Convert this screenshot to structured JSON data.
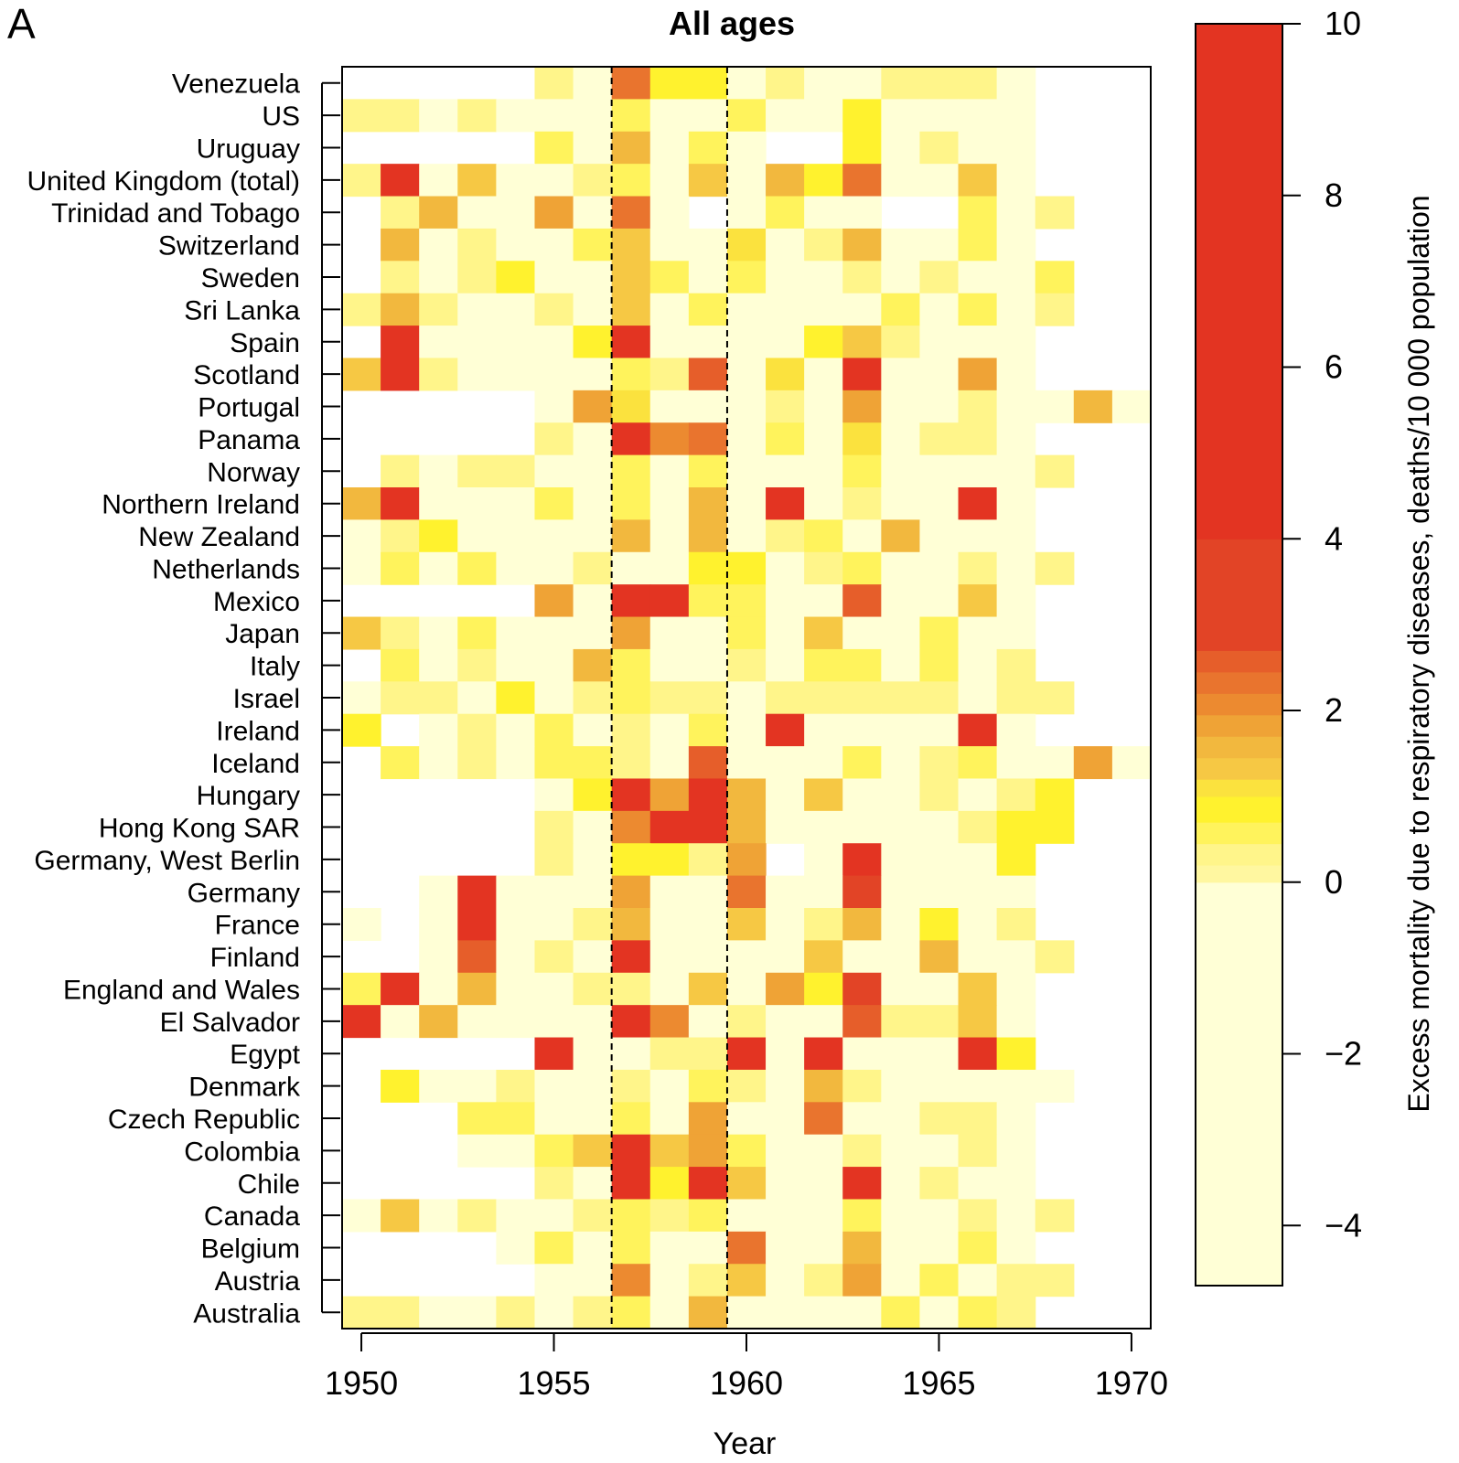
{
  "panel_label": "A",
  "chart_data": {
    "type": "heatmap",
    "title": "All ages",
    "xlabel": "Year",
    "colorbar_label": "Excess mortality due to respiratory diseases, deaths/10 000 population",
    "x_ticks": [
      1950,
      1955,
      1960,
      1965,
      1970
    ],
    "x_range": [
      1949.5,
      1970.5
    ],
    "colorbar_ticks": [
      10,
      8,
      6,
      4,
      2,
      0,
      -2,
      -4
    ],
    "colorbar_range": [
      -4.7,
      10
    ],
    "colorbar_levels": [
      {
        "from": -4.7,
        "to": 0,
        "color": "#FFFFD6"
      },
      {
        "from": 0,
        "to": 0.2,
        "color": "#FFF7A0"
      },
      {
        "from": 0.2,
        "to": 0.45,
        "color": "#FFF58A"
      },
      {
        "from": 0.45,
        "to": 0.7,
        "color": "#FFF35C"
      },
      {
        "from": 0.7,
        "to": 1.0,
        "color": "#FFF22E"
      },
      {
        "from": 1.0,
        "to": 1.2,
        "color": "#FBE23E"
      },
      {
        "from": 1.2,
        "to": 1.45,
        "color": "#F6C844"
      },
      {
        "from": 1.45,
        "to": 1.7,
        "color": "#F2B83E"
      },
      {
        "from": 1.7,
        "to": 1.95,
        "color": "#EFA336"
      },
      {
        "from": 1.95,
        "to": 2.2,
        "color": "#EC8A30"
      },
      {
        "from": 2.2,
        "to": 2.45,
        "color": "#E9742E"
      },
      {
        "from": 2.45,
        "to": 2.7,
        "color": "#E65E2A"
      },
      {
        "from": 2.7,
        "to": 4.0,
        "color": "#E24426"
      },
      {
        "from": 4.0,
        "to": 10,
        "color": "#E33422"
      }
    ],
    "highlight_years": [
      1957,
      1959
    ],
    "countries": [
      "Venezuela",
      "US",
      "Uruguay",
      "United Kingdom (total)",
      "Trinidad and Tobago",
      "Switzerland",
      "Sweden",
      "Sri Lanka",
      "Spain",
      "Scotland",
      "Portugal",
      "Panama",
      "Norway",
      "Northern Ireland",
      "New Zealand",
      "Netherlands",
      "Mexico",
      "Japan",
      "Italy",
      "Israel",
      "Ireland",
      "Iceland",
      "Hungary",
      "Hong Kong SAR",
      "Germany, West Berlin",
      "Germany",
      "France",
      "Finland",
      "England and Wales",
      "El Salvador",
      "Egypt",
      "Denmark",
      "Czech Republic",
      "Colombia",
      "Chile",
      "Canada",
      "Belgium",
      "Austria",
      "Australia"
    ],
    "years": [
      1950,
      1951,
      1952,
      1953,
      1954,
      1955,
      1956,
      1957,
      1958,
      1959,
      1960,
      1961,
      1962,
      1963,
      1964,
      1965,
      1966,
      1967,
      1968,
      1969,
      1970
    ],
    "values": [
      [
        null,
        null,
        null,
        null,
        null,
        0.2,
        -1,
        2.3,
        0.8,
        0.8,
        -1,
        0.2,
        -1,
        -1,
        0.2,
        0.2,
        0.2,
        -1,
        null,
        null,
        null
      ],
      [
        0.2,
        0.2,
        -1,
        0.4,
        -1,
        -1,
        -1,
        0.6,
        -1,
        -1,
        0.6,
        -1,
        -1,
        0.8,
        -1,
        -1,
        -1,
        -1,
        null,
        null,
        null
      ],
      [
        null,
        null,
        null,
        null,
        null,
        0.6,
        -1,
        1.5,
        -1,
        0.6,
        -1,
        null,
        null,
        0.7,
        -1,
        0.2,
        -1,
        -1,
        null,
        null,
        null
      ],
      [
        0.2,
        5.0,
        -1,
        1.3,
        -1,
        -1,
        0.2,
        0.5,
        -1,
        1.2,
        -1,
        1.6,
        0.8,
        2.4,
        -1,
        -1,
        1.2,
        -1,
        null,
        null,
        null
      ],
      [
        null,
        0.2,
        1.6,
        -1,
        -1,
        1.8,
        -1,
        2.3,
        -1,
        null,
        -1,
        0.6,
        -1,
        -1,
        null,
        null,
        0.6,
        -1,
        0.2,
        null,
        null
      ],
      [
        null,
        1.5,
        -1,
        0.4,
        -1,
        -1,
        0.5,
        1.2,
        -1,
        -1,
        1.1,
        -1,
        0.2,
        1.5,
        -1,
        -1,
        0.5,
        -1,
        null,
        null,
        null
      ],
      [
        null,
        0.2,
        -1,
        0.3,
        0.7,
        -1,
        -1,
        1.2,
        0.5,
        -1,
        0.5,
        -1,
        -1,
        0.3,
        -1,
        0.2,
        -1,
        -1,
        0.6,
        null,
        null
      ],
      [
        0.2,
        1.5,
        0.2,
        -1,
        -1,
        0.2,
        -1,
        1.2,
        -1,
        0.5,
        -1,
        -1,
        -1,
        -1,
        0.6,
        -1,
        0.6,
        -1,
        0.2,
        null,
        null
      ],
      [
        null,
        5.0,
        -1,
        -1,
        -1,
        -1,
        0.7,
        5.0,
        -1,
        -1,
        -1,
        -1,
        0.7,
        1.2,
        0.2,
        -1,
        -1,
        -1,
        null,
        null,
        null
      ],
      [
        1.2,
        5.0,
        0.3,
        -1,
        -1,
        -1,
        -1,
        0.6,
        0.2,
        2.5,
        -1,
        1.0,
        -1,
        5.0,
        -1,
        -1,
        1.7,
        -1,
        null,
        null,
        null
      ],
      [
        null,
        null,
        null,
        null,
        null,
        -1,
        1.8,
        1.0,
        -1,
        -1,
        -1,
        0.2,
        -1,
        1.7,
        -1,
        -1,
        0.2,
        -1,
        -1,
        1.5,
        -1
      ],
      [
        null,
        null,
        null,
        null,
        null,
        0.2,
        -1,
        5.0,
        2.0,
        2.4,
        -1,
        0.6,
        -1,
        1.0,
        -1,
        0.2,
        0.2,
        -1,
        null,
        null,
        null
      ],
      [
        null,
        0.2,
        -1,
        0.2,
        0.2,
        -1,
        -1,
        0.5,
        -1,
        0.6,
        -1,
        -1,
        -1,
        0.5,
        -1,
        -1,
        -1,
        -1,
        0.2,
        null,
        null
      ],
      [
        1.6,
        5.0,
        -1,
        -1,
        -1,
        0.6,
        -1,
        0.5,
        -1,
        1.5,
        -1,
        5.0,
        -1,
        0.2,
        -1,
        -1,
        5.0,
        -1,
        null,
        null,
        null
      ],
      [
        -1,
        0.2,
        0.7,
        -1,
        -1,
        -1,
        -1,
        1.5,
        -1,
        1.5,
        -1,
        0.2,
        0.6,
        -1,
        1.6,
        -1,
        -1,
        -1,
        null,
        null,
        null
      ],
      [
        -1,
        0.6,
        -1,
        0.6,
        -1,
        -1,
        0.2,
        -1,
        -1,
        0.7,
        0.7,
        -1,
        0.2,
        0.6,
        -1,
        -1,
        0.2,
        -1,
        0.2,
        null,
        null
      ],
      [
        null,
        null,
        null,
        null,
        null,
        1.8,
        -1,
        5.0,
        5.0,
        0.6,
        0.6,
        -1,
        -1,
        2.6,
        -1,
        -1,
        1.2,
        -1,
        null,
        null,
        null
      ],
      [
        1.2,
        0.2,
        -1,
        0.6,
        -1,
        -1,
        -1,
        1.8,
        -1,
        -1,
        0.5,
        -1,
        1.2,
        -1,
        -1,
        0.6,
        -1,
        -1,
        null,
        null,
        null
      ],
      [
        null,
        0.6,
        -1,
        0.2,
        -1,
        -1,
        1.6,
        0.6,
        -1,
        -1,
        0.2,
        -1,
        0.6,
        0.6,
        -1,
        0.6,
        -1,
        0.2,
        null,
        null,
        null
      ],
      [
        -1,
        0.2,
        0.2,
        -1,
        0.7,
        -1,
        0.2,
        0.6,
        0.2,
        0.2,
        -1,
        0.2,
        0.2,
        0.2,
        0.2,
        0.2,
        -1,
        0.2,
        0.2,
        null,
        null
      ],
      [
        0.7,
        null,
        -1,
        0.2,
        -1,
        0.6,
        -1,
        0.2,
        -1,
        0.6,
        -1,
        5.0,
        -1,
        -1,
        -1,
        -1,
        5.0,
        -1,
        null,
        null,
        null
      ],
      [
        null,
        0.6,
        -1,
        0.2,
        -1,
        0.6,
        0.6,
        0.2,
        -1,
        2.6,
        -1,
        -1,
        -1,
        0.6,
        -1,
        0.2,
        0.6,
        -1,
        -1,
        1.8,
        -1
      ],
      [
        null,
        null,
        null,
        null,
        null,
        -1,
        0.7,
        5.0,
        1.7,
        5.0,
        1.5,
        -1,
        1.2,
        -1,
        -1,
        0.2,
        -1,
        0.2,
        0.8,
        null,
        null
      ],
      [
        null,
        null,
        null,
        null,
        null,
        0.2,
        -1,
        2.0,
        5.0,
        5.0,
        1.5,
        -1,
        -1,
        -1,
        -1,
        -1,
        0.2,
        0.8,
        0.8,
        null,
        null
      ],
      [
        null,
        null,
        null,
        null,
        null,
        0.2,
        -1,
        0.8,
        0.8,
        0.2,
        1.9,
        null,
        -1,
        5.0,
        -1,
        -1,
        -1,
        0.8,
        null,
        null,
        null
      ],
      [
        null,
        null,
        -1,
        5.0,
        -1,
        -1,
        -1,
        1.8,
        -1,
        -1,
        2.2,
        -1,
        -1,
        3.0,
        -1,
        -1,
        -1,
        -1,
        null,
        null,
        null
      ],
      [
        -1,
        null,
        -1,
        5.0,
        -1,
        -1,
        0.2,
        1.5,
        -1,
        -1,
        1.2,
        -1,
        0.2,
        1.5,
        -1,
        0.7,
        -1,
        0.2,
        null,
        null,
        null
      ],
      [
        null,
        null,
        -1,
        2.5,
        -1,
        0.2,
        -1,
        5.0,
        -1,
        -1,
        -1,
        -1,
        1.2,
        -1,
        -1,
        1.5,
        -1,
        -1,
        0.2,
        null,
        null
      ],
      [
        0.6,
        5.0,
        -1,
        1.6,
        -1,
        -1,
        0.2,
        0.2,
        -1,
        1.2,
        -1,
        1.7,
        0.8,
        3.0,
        -1,
        -1,
        1.2,
        -1,
        null,
        null,
        null
      ],
      [
        5.0,
        -1,
        1.5,
        -1,
        -1,
        -1,
        -1,
        5.0,
        2.0,
        -1,
        0.2,
        -1,
        -1,
        2.5,
        0.2,
        0.2,
        1.2,
        -1,
        null,
        null,
        null
      ],
      [
        null,
        null,
        null,
        null,
        null,
        5.0,
        -1,
        -1,
        0.2,
        0.2,
        5.0,
        -1,
        5.0,
        -1,
        -1,
        -1,
        5.0,
        0.8,
        null,
        null,
        null
      ],
      [
        null,
        0.7,
        -1,
        -1,
        0.2,
        -1,
        -1,
        0.2,
        -1,
        0.6,
        0.2,
        -1,
        1.6,
        0.2,
        -1,
        -1,
        -1,
        -1,
        -1,
        null,
        null
      ],
      [
        null,
        null,
        null,
        0.6,
        0.6,
        -1,
        -1,
        0.6,
        -1,
        1.7,
        -1,
        -1,
        2.4,
        -1,
        -1,
        0.2,
        0.2,
        -1,
        null,
        null,
        null
      ],
      [
        null,
        null,
        null,
        -1,
        -1,
        0.5,
        1.2,
        5.0,
        1.2,
        1.7,
        0.6,
        -1,
        -1,
        0.2,
        -1,
        -1,
        0.2,
        -1,
        null,
        null,
        null
      ],
      [
        null,
        null,
        null,
        null,
        null,
        0.2,
        -1,
        5.0,
        0.7,
        5.0,
        1.2,
        -1,
        -1,
        5.0,
        -1,
        0.2,
        -1,
        -1,
        null,
        null,
        null
      ],
      [
        -1,
        1.2,
        -1,
        0.2,
        -1,
        -1,
        0.2,
        0.6,
        0.2,
        0.6,
        -1,
        -1,
        -1,
        0.6,
        -1,
        -1,
        0.2,
        -1,
        0.2,
        null,
        null
      ],
      [
        null,
        null,
        null,
        null,
        -1,
        0.6,
        -1,
        0.6,
        -1,
        -1,
        2.4,
        -1,
        -1,
        1.5,
        -1,
        -1,
        0.6,
        -1,
        null,
        null,
        null
      ],
      [
        null,
        null,
        null,
        null,
        null,
        -1,
        -1,
        2.0,
        -1,
        0.2,
        1.2,
        -1,
        0.2,
        1.7,
        -1,
        0.6,
        -1,
        0.2,
        0.2,
        null,
        null
      ],
      [
        0.2,
        0.2,
        -1,
        -1,
        0.2,
        -1,
        0.2,
        0.6,
        -1,
        1.5,
        -1,
        -1,
        -1,
        -1,
        0.6,
        -1,
        0.6,
        0.2,
        null,
        null,
        null
      ]
    ]
  }
}
